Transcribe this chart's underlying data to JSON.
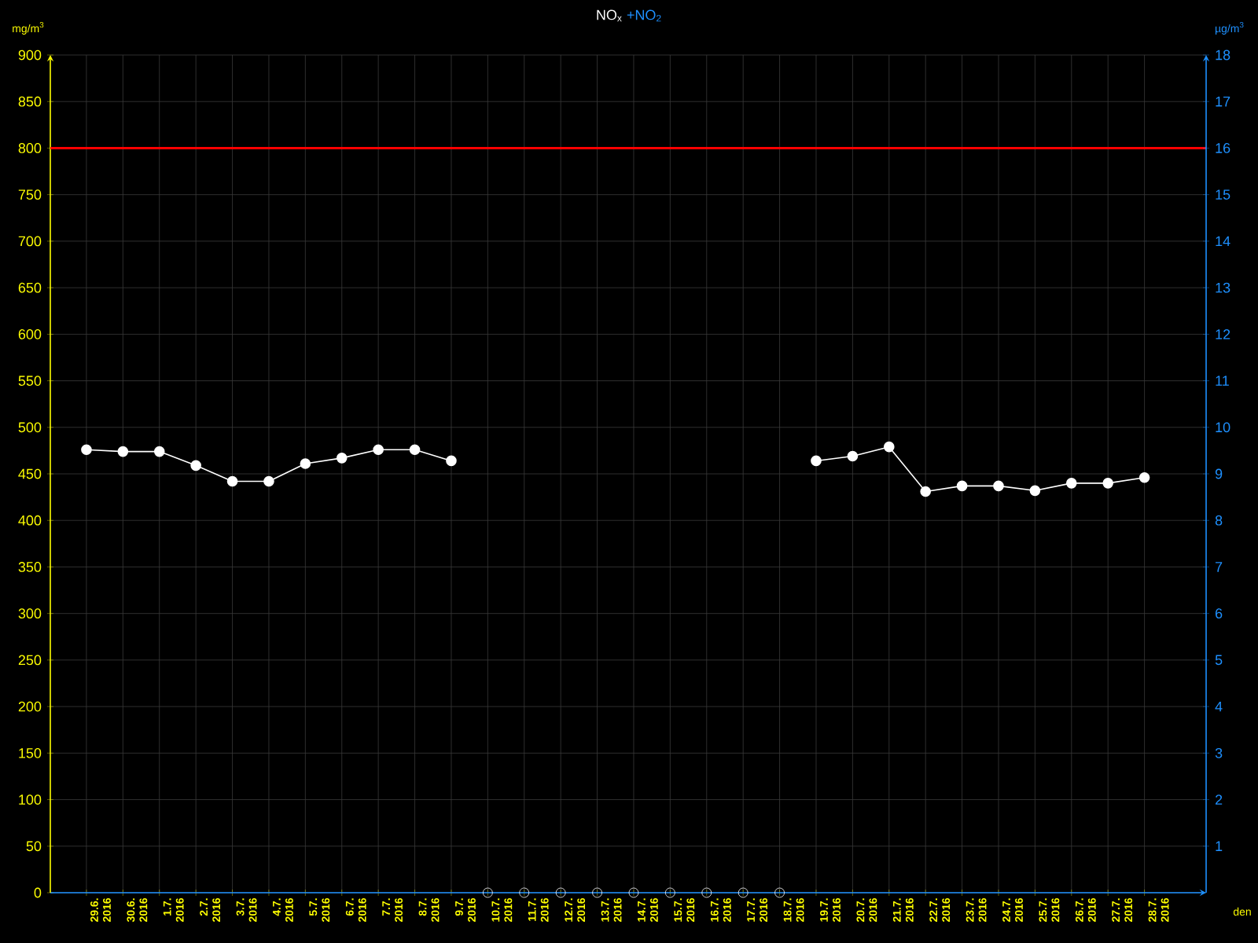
{
  "chart_data": {
    "type": "line",
    "title": "NO$_{x}$",
    "subtitle": "+NO$_{2}$",
    "xlabel": "den",
    "ylabel": "mg/m$^{3}$",
    "y2label": "µg/m$^{3}$",
    "categories": [
      "29.6. 2016",
      "30.6. 2016",
      "1.7. 2016",
      "2.7. 2016",
      "3.7. 2016",
      "4.7. 2016",
      "5.7. 2016",
      "6.7. 2016",
      "7.7. 2016",
      "8.7. 2016",
      "9.7. 2016",
      "10.7. 2016",
      "11.7. 2016",
      "12.7. 2016",
      "13.7. 2016",
      "14.7. 2016",
      "15.7. 2016",
      "16.7. 2016",
      "17.7. 2016",
      "18.7. 2016",
      "19.7. 2016",
      "20.7. 2016",
      "21.7. 2016",
      "22.7. 2016",
      "23.7. 2016",
      "24.7. 2016",
      "25.7. 2016",
      "26.7. 2016",
      "27.7. 2016",
      "28.7. 2016"
    ],
    "series": [
      {
        "color": "#ffffff",
        "values": [
          476,
          474,
          474,
          459,
          442,
          442,
          461,
          467,
          476,
          476,
          464,
          null,
          null,
          null,
          null,
          null,
          null,
          null,
          null,
          null,
          464,
          469,
          479,
          431,
          437,
          437,
          432,
          440,
          440,
          446
        ]
      },
      {
        "type": "scatter",
        "color": "#ffffff",
        "values": [
          null,
          null,
          null,
          null,
          null,
          null,
          null,
          null,
          null,
          null,
          null,
          0,
          0,
          0,
          0,
          0,
          0,
          0,
          0,
          0,
          null,
          null,
          null,
          null,
          null,
          null,
          null,
          null,
          null,
          null
        ]
      }
    ],
    "ylim": [
      0,
      900
    ],
    "yticks": [
      0,
      50,
      100,
      150,
      200,
      250,
      300,
      350,
      400,
      450,
      500,
      550,
      600,
      650,
      700,
      750,
      800,
      850,
      900
    ],
    "y2lim": [
      0,
      18
    ],
    "y2ticks": [
      1,
      2,
      3,
      4,
      5,
      6,
      7,
      8,
      9,
      10,
      11,
      12,
      13,
      14,
      15,
      16,
      17,
      18
    ],
    "ref_lines": [
      {
        "axis": "y",
        "value": 800,
        "color": "#ff0000"
      }
    ],
    "grid": true,
    "marker": "circle"
  }
}
